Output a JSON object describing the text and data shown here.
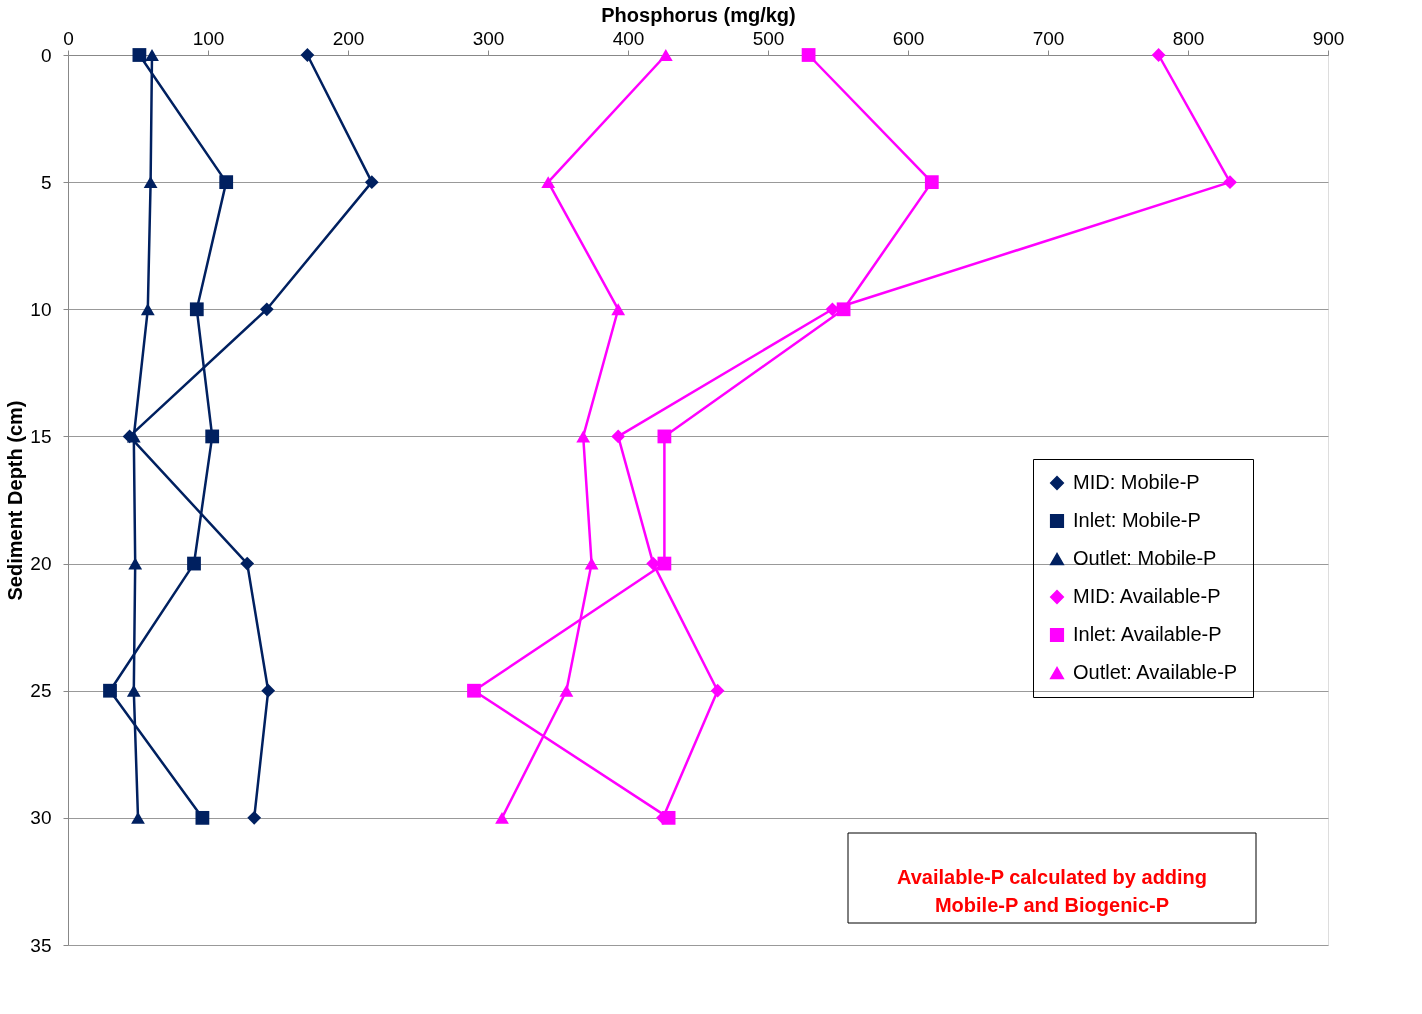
{
  "chart_data": {
    "type": "line",
    "xlabel": "Phosphorus (mg/kg)",
    "ylabel": "Sediment Depth (cm)",
    "xlim": [
      0,
      900
    ],
    "xticks": [
      0,
      100,
      200,
      300,
      400,
      500,
      600,
      700,
      800,
      900
    ],
    "ylim": [
      35,
      0
    ],
    "yticks": [
      0,
      5,
      10,
      15,
      20,
      25,
      30,
      35
    ],
    "grid": "y",
    "legend": "right",
    "series": [
      {
        "name": "MID: Mobile-P",
        "color": "#002060",
        "marker": "diamond",
        "x": [
          171,
          217,
          142,
          44,
          128,
          143,
          133
        ],
        "values": [
          0,
          5,
          10,
          15,
          20,
          25,
          30
        ]
      },
      {
        "name": "Inlet: Mobile-P",
        "color": "#002060",
        "marker": "square",
        "x": [
          51,
          113,
          92,
          103,
          90,
          30,
          96
        ],
        "values": [
          0,
          5,
          10,
          15,
          20,
          25,
          30
        ]
      },
      {
        "name": "Outlet: Mobile-P",
        "color": "#002060",
        "marker": "triangle",
        "x": [
          60,
          59,
          57,
          47,
          48,
          47,
          50
        ],
        "values": [
          0,
          5,
          10,
          15,
          20,
          25,
          30
        ]
      },
      {
        "name": "MID: Available-P",
        "color": "#ff00ff",
        "marker": "diamond",
        "x": [
          779,
          830,
          546,
          393,
          418,
          464,
          425
        ],
        "values": [
          0,
          5,
          10,
          15,
          20,
          25,
          30
        ]
      },
      {
        "name": "Inlet: Available-P",
        "color": "#ff00ff",
        "marker": "square",
        "x": [
          529,
          617,
          554,
          426,
          426,
          290,
          429
        ],
        "values": [
          0,
          5,
          10,
          15,
          20,
          25,
          30
        ]
      },
      {
        "name": "Outlet: Available-P",
        "color": "#ff00ff",
        "marker": "triangle",
        "x": [
          427,
          343,
          393,
          368,
          374,
          356,
          310
        ],
        "values": [
          0,
          5,
          10,
          15,
          20,
          25,
          30
        ]
      }
    ],
    "annotations": [
      "Available-P calculated by adding\nMobile-P and Biogenic-P"
    ]
  }
}
